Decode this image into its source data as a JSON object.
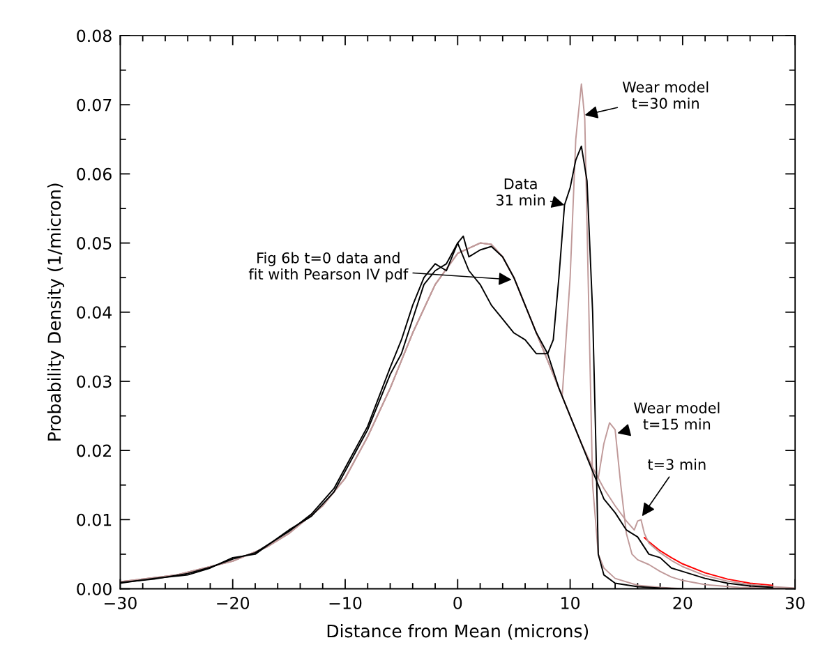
{
  "chart_data": {
    "type": "line",
    "xlabel": "Distance from Mean (microns)",
    "ylabel": "Probability Density (1/micron)",
    "xlim": [
      -30,
      30
    ],
    "ylim": [
      0,
      0.08
    ],
    "xticks": [
      {
        "value": -30,
        "label": "−30"
      },
      {
        "value": -28,
        "label": null
      },
      {
        "value": -26,
        "label": null
      },
      {
        "value": -24,
        "label": null
      },
      {
        "value": -22,
        "label": null
      },
      {
        "value": -20,
        "label": "−20"
      },
      {
        "value": -18,
        "label": null
      },
      {
        "value": -16,
        "label": null
      },
      {
        "value": -14,
        "label": null
      },
      {
        "value": -12,
        "label": null
      },
      {
        "value": -10,
        "label": "−10"
      },
      {
        "value": -8,
        "label": null
      },
      {
        "value": -6,
        "label": null
      },
      {
        "value": -4,
        "label": null
      },
      {
        "value": -2,
        "label": null
      },
      0,
      {
        "value": 2,
        "label": null
      },
      {
        "value": 4,
        "label": null
      },
      {
        "value": 6,
        "label": null
      },
      {
        "value": 8,
        "label": null
      },
      10,
      {
        "value": 12,
        "label": null
      },
      {
        "value": 14,
        "label": null
      },
      {
        "value": 16,
        "label": null
      },
      {
        "value": 18,
        "label": null
      },
      20,
      {
        "value": 22,
        "label": null
      },
      {
        "value": 24,
        "label": null
      },
      {
        "value": 26,
        "label": null
      },
      {
        "value": 28,
        "label": null
      },
      30
    ],
    "yticks": [
      {
        "value": 0,
        "label": "0.00"
      },
      {
        "value": 0.005,
        "label": null
      },
      {
        "value": 0.01,
        "label": "0.01"
      },
      {
        "value": 0.015,
        "label": null
      },
      {
        "value": 0.02,
        "label": "0.02"
      },
      {
        "value": 0.025,
        "label": null
      },
      {
        "value": 0.03,
        "label": "0.03"
      },
      {
        "value": 0.035,
        "label": null
      },
      {
        "value": 0.04,
        "label": "0.04"
      },
      {
        "value": 0.045,
        "label": null
      },
      {
        "value": 0.05,
        "label": "0.05"
      },
      {
        "value": 0.055,
        "label": null
      },
      {
        "value": 0.06,
        "label": "0.06"
      },
      {
        "value": 0.065,
        "label": null
      },
      {
        "value": 0.07,
        "label": "0.07"
      },
      {
        "value": 0.075,
        "label": null
      },
      {
        "value": 0.08,
        "label": "0.08"
      }
    ],
    "grid": false,
    "legend": false,
    "line_style": "solid",
    "marker": "none",
    "series": [
      {
        "color": "#ff0000",
        "x": [
          16.6,
          17,
          18,
          19,
          20,
          22,
          24,
          26,
          28
        ],
        "values": [
          0.0074,
          0.0068,
          0.0055,
          0.0045,
          0.0036,
          0.0023,
          0.0014,
          0.0008,
          0.0005
        ]
      },
      {
        "color": "#c09a9a",
        "x": [
          -30,
          -25,
          -20,
          -17,
          -15,
          -12,
          -10,
          -8,
          -6,
          -4,
          -2,
          0,
          2,
          3,
          4,
          5,
          6,
          7,
          8,
          9,
          9.3,
          10,
          10.5,
          11,
          11.3,
          11.6,
          12,
          12.5,
          13,
          14,
          16,
          18,
          20
        ],
        "values": [
          0.001,
          0.002,
          0.004,
          0.006,
          0.008,
          0.012,
          0.016,
          0.022,
          0.029,
          0.037,
          0.044,
          0.0485,
          0.05,
          0.0498,
          0.048,
          0.045,
          0.041,
          0.037,
          0.033,
          0.029,
          0.028,
          0.045,
          0.065,
          0.073,
          0.068,
          0.045,
          0.015,
          0.005,
          0.003,
          0.0015,
          0.0005,
          0.0002,
          0
        ]
      },
      {
        "color": "#c09a9a",
        "x": [
          -30,
          -25,
          -20,
          -17,
          -15,
          -12,
          -10,
          -8,
          -6,
          -4,
          -2,
          0,
          2,
          3,
          4,
          5,
          6,
          7,
          8,
          9,
          10,
          11,
          12,
          12.5,
          13,
          13.5,
          14,
          14.5,
          15,
          15.5,
          16,
          17,
          18,
          19,
          20,
          22,
          25,
          30
        ],
        "values": [
          0.001,
          0.002,
          0.004,
          0.006,
          0.008,
          0.012,
          0.016,
          0.022,
          0.029,
          0.037,
          0.044,
          0.0485,
          0.05,
          0.0498,
          0.048,
          0.045,
          0.041,
          0.037,
          0.033,
          0.029,
          0.025,
          0.021,
          0.0175,
          0.016,
          0.021,
          0.024,
          0.023,
          0.015,
          0.008,
          0.005,
          0.0042,
          0.0035,
          0.0025,
          0.0017,
          0.0012,
          0.0006,
          0.0002,
          0
        ]
      },
      {
        "color": "#c09a9a",
        "x": [
          -30,
          -25,
          -20,
          -17,
          -15,
          -12,
          -10,
          -8,
          -6,
          -4,
          -2,
          0,
          2,
          3,
          4,
          5,
          6,
          7,
          8,
          9,
          10,
          11,
          12,
          13,
          14,
          15,
          15.7,
          16,
          16.3,
          16.6,
          17,
          18,
          19,
          20,
          22,
          24,
          26,
          28,
          30
        ],
        "values": [
          0.001,
          0.002,
          0.004,
          0.006,
          0.008,
          0.012,
          0.016,
          0.022,
          0.029,
          0.037,
          0.044,
          0.0485,
          0.05,
          0.0498,
          0.048,
          0.045,
          0.041,
          0.037,
          0.033,
          0.029,
          0.025,
          0.021,
          0.0175,
          0.0145,
          0.012,
          0.0098,
          0.0085,
          0.0098,
          0.01,
          0.008,
          0.0066,
          0.0052,
          0.0041,
          0.0032,
          0.0019,
          0.0011,
          0.0006,
          0.0003,
          0.0001
        ]
      },
      {
        "color": "#000000",
        "x": [
          -30,
          -27,
          -24,
          -22,
          -20,
          -18,
          -15,
          -13,
          -11,
          -10,
          -8,
          -6,
          -5,
          -4,
          -3,
          -2,
          -1,
          0,
          0.5,
          1,
          2,
          3,
          4,
          5,
          6,
          7,
          8,
          9,
          10,
          11,
          11.5,
          12,
          13,
          14,
          15,
          16,
          17,
          18,
          19,
          20,
          22,
          24,
          26,
          28
        ],
        "values": [
          0.0008,
          0.0015,
          0.002,
          0.003,
          0.0045,
          0.005,
          0.0085,
          0.0105,
          0.014,
          0.017,
          0.023,
          0.031,
          0.034,
          0.039,
          0.044,
          0.046,
          0.047,
          0.05,
          0.051,
          0.048,
          0.049,
          0.0495,
          0.048,
          0.045,
          0.041,
          0.037,
          0.034,
          0.029,
          0.025,
          0.021,
          0.019,
          0.017,
          0.013,
          0.011,
          0.0085,
          0.0075,
          0.005,
          0.0045,
          0.003,
          0.0025,
          0.0015,
          0.0008,
          0.0004,
          0.0002
        ]
      },
      {
        "color": "#000000",
        "x": [
          -30,
          -27,
          -24,
          -22,
          -20,
          -18,
          -15,
          -13,
          -11,
          -10,
          -8,
          -6,
          -5,
          -4,
          -3,
          -2,
          -1,
          0,
          1,
          2,
          3,
          4,
          5,
          6,
          7,
          8,
          8.5,
          9,
          9.5,
          10,
          10.5,
          11,
          11.5,
          12,
          12.3,
          12.5,
          13,
          14,
          16,
          18,
          20
        ],
        "values": [
          0.0009,
          0.0014,
          0.0022,
          0.0031,
          0.0043,
          0.0052,
          0.0083,
          0.0108,
          0.0145,
          0.0175,
          0.0235,
          0.032,
          0.036,
          0.041,
          0.045,
          0.047,
          0.046,
          0.05,
          0.046,
          0.044,
          0.041,
          0.039,
          0.037,
          0.036,
          0.034,
          0.034,
          0.036,
          0.045,
          0.0555,
          0.058,
          0.062,
          0.064,
          0.059,
          0.04,
          0.02,
          0.005,
          0.002,
          0.0008,
          0.0003,
          0.0001,
          0
        ]
      }
    ],
    "annotations": [
      {
        "text": "Fig 6b t=0 data and\nfit with Pearson IV pdf",
        "x": 4.8,
        "y": 0.0447
      },
      {
        "text": "Data\n31 min",
        "x": 9.5,
        "y": 0.0555
      },
      {
        "text": "Wear model\nt=30 min",
        "x": 11.3,
        "y": 0.0685
      },
      {
        "text": "Wear model\nt=15 min",
        "x": 14.2,
        "y": 0.0225
      },
      {
        "text": "t=3 min",
        "x": 16.4,
        "y": 0.0105
      }
    ]
  }
}
